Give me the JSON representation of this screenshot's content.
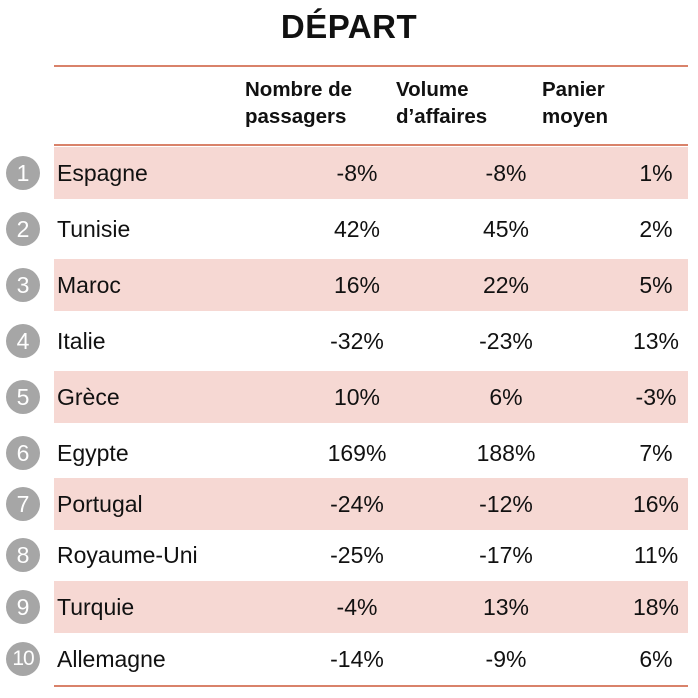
{
  "chart_data": {
    "type": "table",
    "title": "DÉPART",
    "columns": [
      {
        "line1": "Nombre de",
        "line2": "passagers"
      },
      {
        "line1": "Volume",
        "line2": "d’affaires"
      },
      {
        "line1": "Panier",
        "line2": "moyen"
      }
    ],
    "rows": [
      {
        "rank": "1",
        "country": "Espagne",
        "values": [
          "-8%",
          "-8%",
          "1%"
        ]
      },
      {
        "rank": "2",
        "country": "Tunisie",
        "values": [
          "42%",
          "45%",
          "2%"
        ]
      },
      {
        "rank": "3",
        "country": "Maroc",
        "values": [
          "16%",
          "22%",
          "5%"
        ]
      },
      {
        "rank": "4",
        "country": "Italie",
        "values": [
          "-32%",
          "-23%",
          "13%"
        ]
      },
      {
        "rank": "5",
        "country": "Grèce",
        "values": [
          "10%",
          "6%",
          "-3%"
        ]
      },
      {
        "rank": "6",
        "country": "Egypte",
        "values": [
          "169%",
          "188%",
          "7%"
        ]
      },
      {
        "rank": "7",
        "country": "Portugal",
        "values": [
          "-24%",
          "-12%",
          "16%"
        ]
      },
      {
        "rank": "8",
        "country": "Royaume-Uni",
        "values": [
          "-25%",
          "-17%",
          "11%"
        ]
      },
      {
        "rank": "9",
        "country": "Turquie",
        "values": [
          "-4%",
          "13%",
          "18%"
        ]
      },
      {
        "rank": "10",
        "country": "Allemagne",
        "values": [
          "-14%",
          "-9%",
          "6%"
        ]
      }
    ],
    "colors": {
      "shaded_row": "#f6d8d3",
      "rule": "#d9826a",
      "badge": "#a6a6a6"
    }
  }
}
